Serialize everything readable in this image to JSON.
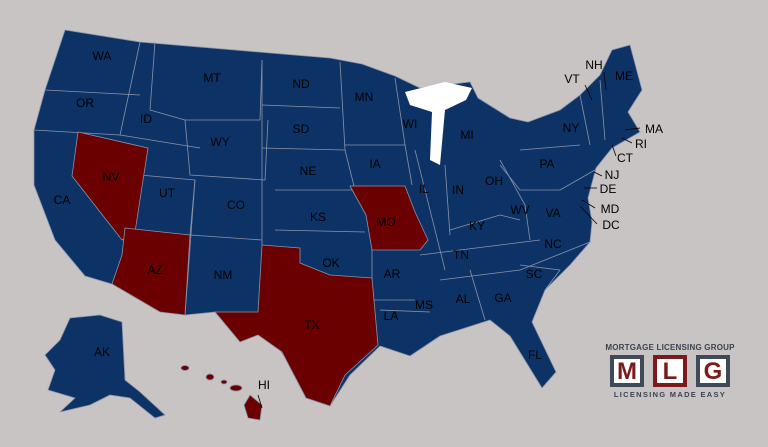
{
  "colors": {
    "background": "#c9c4c4",
    "default_state": "#0d3366",
    "highlighted_state": "#6b0000",
    "lake": "#ffffff"
  },
  "highlighted_states": [
    "NV",
    "AZ",
    "TX",
    "MO",
    "HI"
  ],
  "labels": {
    "WA": "WA",
    "OR": "OR",
    "CA": "CA",
    "ID": "ID",
    "NV": "NV",
    "MT": "MT",
    "WY": "WY",
    "UT": "UT",
    "AZ": "AZ",
    "CO": "CO",
    "NM": "NM",
    "ND": "ND",
    "SD": "SD",
    "NE": "NE",
    "KS": "KS",
    "OK": "OK",
    "TX": "TX",
    "MN": "MN",
    "IA": "IA",
    "MO": "MO",
    "AR": "AR",
    "LA": "LA",
    "WI": "WI",
    "IL": "IL",
    "MS": "MS",
    "MI": "MI",
    "IN": "IN",
    "KY": "KY",
    "TN": "TN",
    "AL": "AL",
    "OH": "OH",
    "WV": "WV",
    "GA": "GA",
    "FL": "FL",
    "SC": "SC",
    "NC": "NC",
    "VA": "VA",
    "PA": "PA",
    "NY": "NY",
    "VT": "VT",
    "NH": "NH",
    "ME": "ME",
    "MA": "MA",
    "RI": "RI",
    "CT": "CT",
    "NJ": "NJ",
    "DE": "DE",
    "MD": "MD",
    "DC": "DC",
    "AK": "AK",
    "HI": "HI"
  },
  "logo": {
    "top": "MORTGAGE LICENSING GROUP",
    "letters": [
      "M",
      "L",
      "G"
    ],
    "tagline": "LICENSING MADE EASY"
  }
}
